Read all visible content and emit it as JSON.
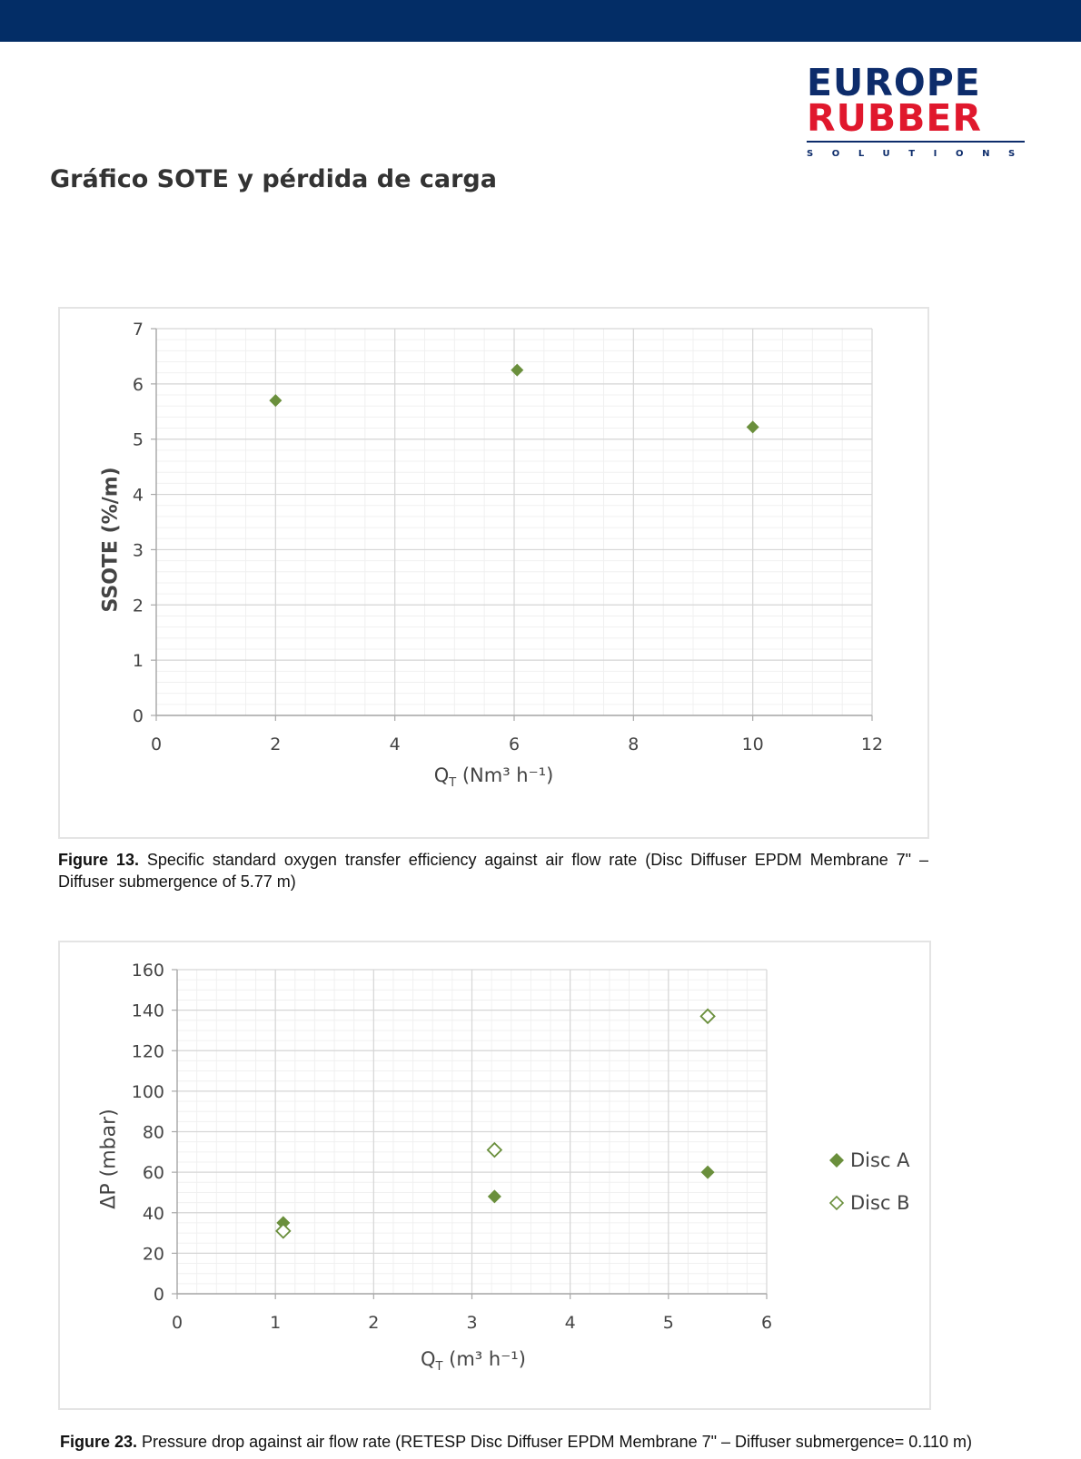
{
  "header": {
    "logo": {
      "line1": "EUROPE",
      "line2": "RUBBER",
      "line3": "SOLUTIONS"
    },
    "title": "Gráfico SOTE y pérdida de carga"
  },
  "colors": {
    "topbar": "#032d66",
    "logo_blue": "#0d2c6b",
    "logo_red": "#e0182d",
    "marker": "#6a8f3c"
  },
  "chart_data": [
    {
      "type": "scatter",
      "ylabel": "SSOTE (%/m)",
      "xlabel_base": "Q",
      "xlabel_sub": "T",
      "xlabel_units": " (Nm³ h⁻¹)",
      "xlim": [
        0,
        12
      ],
      "ylim": [
        0,
        7
      ],
      "x_ticks": [
        0,
        2,
        4,
        6,
        8,
        10,
        12
      ],
      "y_ticks": [
        0,
        1,
        2,
        3,
        4,
        5,
        6,
        7
      ],
      "grid": true,
      "series": [
        {
          "marker": "diamond-filled",
          "x": [
            2,
            6.05,
            10
          ],
          "y": [
            5.7,
            6.25,
            5.22
          ]
        }
      ],
      "caption_bold": "Figure 13.",
      "caption_text": " Specific standard oxygen transfer efficiency against air flow rate (Disc Diffuser EPDM Membrane 7\" – Diffuser submergence of 5.77 m)"
    },
    {
      "type": "scatter",
      "ylabel": "ΔP (mbar)",
      "xlabel_base": "Q",
      "xlabel_sub": "T",
      "xlabel_units": " (m³ h⁻¹)",
      "xlim": [
        0,
        6
      ],
      "ylim": [
        0,
        160
      ],
      "x_ticks": [
        0,
        1,
        2,
        3,
        4,
        5,
        6
      ],
      "y_ticks": [
        0,
        20,
        40,
        60,
        80,
        100,
        120,
        140,
        160
      ],
      "grid": true,
      "legend_position": "right",
      "series": [
        {
          "name": "Disc A",
          "marker": "diamond-filled",
          "x": [
            1.08,
            3.23,
            5.4
          ],
          "y": [
            35,
            48,
            60
          ]
        },
        {
          "name": "Disc B",
          "marker": "diamond-open",
          "x": [
            1.08,
            3.23,
            5.4
          ],
          "y": [
            31,
            71,
            137
          ]
        }
      ],
      "caption_bold": "Figure 23.",
      "caption_text": " Pressure drop against air flow rate (RETESP Disc Diffuser EPDM Membrane 7\" – Diffuser submergence= 0.110 m)"
    }
  ]
}
